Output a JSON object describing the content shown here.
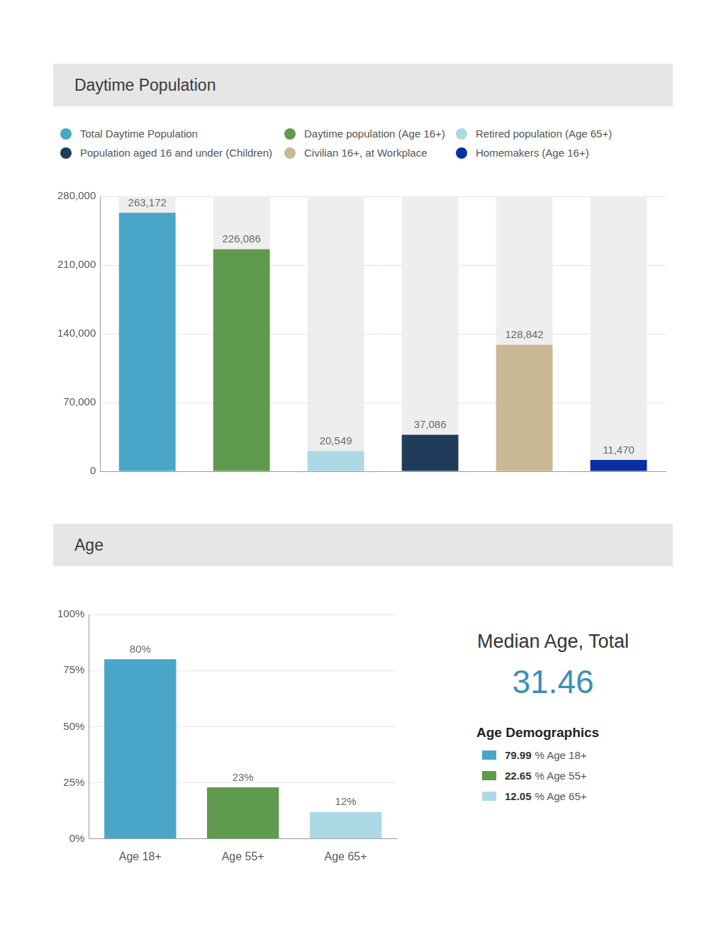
{
  "chart_data": [
    {
      "type": "bar",
      "title": "Daytime Population",
      "categories": [
        "Total Daytime Population",
        "Daytime population (Age 16+)",
        "Retired population (Age 65+)",
        "Population aged 16 and under (Children)",
        "Civilian 16+, at Workplace",
        "Homemakers (Age 16+)"
      ],
      "values": [
        263172,
        226086,
        20549,
        37086,
        128842,
        11470
      ],
      "value_labels": [
        "263,172",
        "226,086",
        "20,549",
        "37,086",
        "128,842",
        "11,470"
      ],
      "colors": [
        "#4aa6c9",
        "#5f9a4e",
        "#add8e6",
        "#1f3d5a",
        "#c8b994",
        "#0a2fa0"
      ],
      "ylim": [
        0,
        280000
      ],
      "yticks": [
        0,
        {
          "value": 70000,
          "label": "70,000"
        },
        {
          "value": 140000,
          "label": "140,000"
        },
        {
          "value": 210000,
          "label": "210,000"
        },
        {
          "value": 280000,
          "label": "280,000"
        }
      ],
      "grid": true,
      "legend": "top",
      "data_labels": true,
      "tick_labels": "y"
    },
    {
      "type": "bar",
      "title": "Age",
      "categories": [
        "Age 18+",
        "Age 55+",
        "Age 65+"
      ],
      "values": [
        80,
        23,
        12
      ],
      "value_labels": [
        "80%",
        "23%",
        "12%"
      ],
      "colors": [
        "#4aa6c9",
        "#5f9a4e",
        "#add8e6"
      ],
      "ylim": [
        0,
        100
      ],
      "yticks": [
        {
          "value": 0,
          "label": "0%"
        },
        {
          "value": 25,
          "label": "25%"
        },
        {
          "value": 50,
          "label": "50%"
        },
        {
          "value": 75,
          "label": "75%"
        },
        {
          "value": 100,
          "label": "100%"
        }
      ],
      "grid": true,
      "data_labels": true
    }
  ],
  "side_panel": {
    "median_age": {
      "label": "Median Age, Total",
      "value": 31.46
    },
    "age_demographics": {
      "title": "Age Demographics",
      "items": [
        {
          "value": 79.99,
          "unit": "%",
          "label": "Age 18+",
          "color": "#4aa6c9"
        },
        {
          "value": 22.65,
          "unit": "%",
          "label": "Age 55+",
          "color": "#5f9a4e"
        },
        {
          "value": 12.05,
          "unit": "%",
          "label": "Age 65+",
          "color": "#add8e6"
        }
      ]
    }
  }
}
